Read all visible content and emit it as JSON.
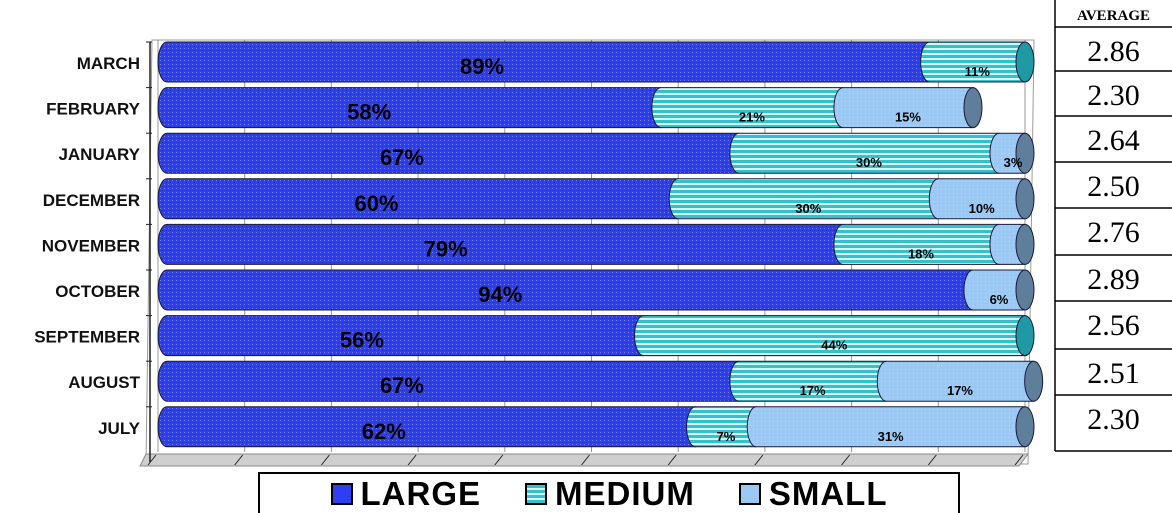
{
  "chart_data": {
    "type": "bar",
    "orientation": "horizontal",
    "stacked": true,
    "percent_stacked": true,
    "categories": [
      "MARCH",
      "FEBRUARY",
      "JANUARY",
      "DECEMBER",
      "NOVEMBER",
      "OCTOBER",
      "SEPTEMBER",
      "AUGUST",
      "JULY"
    ],
    "series": [
      {
        "name": "LARGE",
        "values": [
          89,
          58,
          67,
          60,
          79,
          94,
          56,
          67,
          62
        ]
      },
      {
        "name": "MEDIUM",
        "values": [
          11,
          21,
          30,
          30,
          18,
          0,
          44,
          17,
          7
        ]
      },
      {
        "name": "SMALL",
        "values": [
          0,
          15,
          3,
          10,
          3,
          6,
          0,
          17,
          31
        ]
      }
    ],
    "labels": [
      [
        "89%",
        "11%",
        ""
      ],
      [
        "58%",
        "21%",
        "15%"
      ],
      [
        "67%",
        "30%",
        "3%"
      ],
      [
        "60%",
        "30%",
        "10%"
      ],
      [
        "79%",
        "18%",
        ""
      ],
      [
        "94%",
        "",
        "6%"
      ],
      [
        "56%",
        "44%",
        ""
      ],
      [
        "67%",
        "17%",
        "17%"
      ],
      [
        "62%",
        "7%",
        "31%"
      ]
    ],
    "xlim": [
      0,
      100
    ],
    "title": "",
    "xlabel": "",
    "ylabel": "",
    "legend_position": "bottom",
    "colors": {
      "LARGE": "#2d3ff0",
      "MEDIUM": "#33c2cc",
      "SMALL": "#9cc8f4",
      "floor": "#cfcfcf"
    }
  },
  "average_table": {
    "header": "AVERAGE",
    "values": [
      "2.86",
      "2.30",
      "2.64",
      "2.50",
      "2.76",
      "2.89",
      "2.56",
      "2.51",
      "2.30"
    ]
  },
  "legend": {
    "items": [
      {
        "label": "LARGE",
        "icon": "large-swatch"
      },
      {
        "label": "MEDIUM",
        "icon": "medium-swatch"
      },
      {
        "label": "SMALL",
        "icon": "small-swatch"
      }
    ]
  }
}
